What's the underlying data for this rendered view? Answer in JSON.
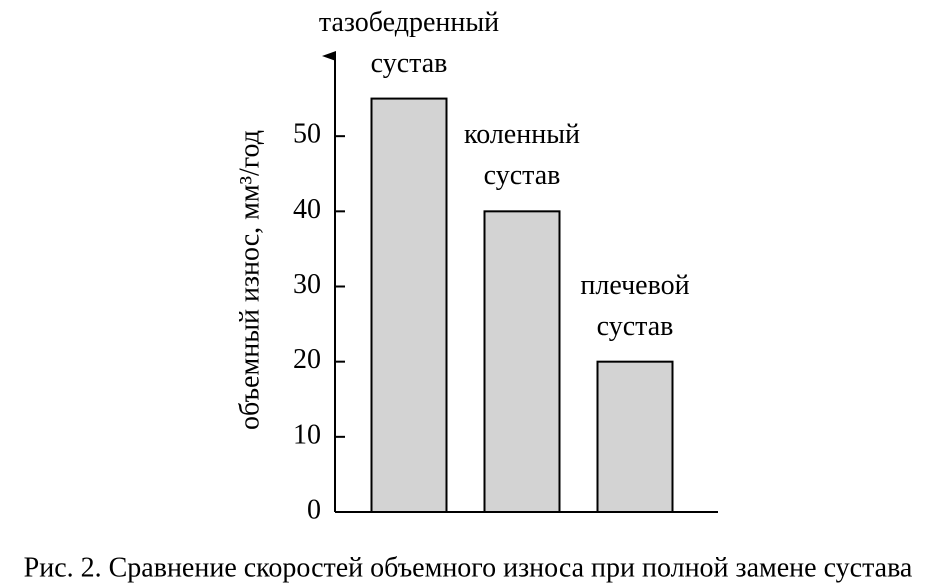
{
  "chart_data": {
    "type": "bar",
    "caption": "Рис. 2. Сравнение скоростей объемного износа при полной замене сустава",
    "y_label": "объемный износ, мм³/год",
    "categories": [
      "тазобедренный сустав",
      "коленный сустав",
      "плечевой сустав"
    ],
    "values": [
      55,
      40,
      20
    ],
    "color": "#d3d3d3",
    "ylim": [
      0,
      60
    ],
    "yticks": [
      0,
      10,
      20,
      30,
      40,
      50
    ]
  }
}
